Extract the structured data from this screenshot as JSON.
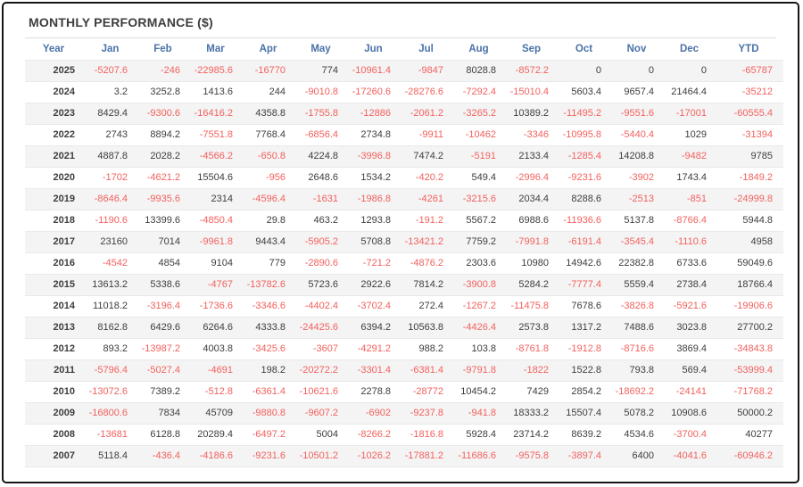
{
  "title": "MONTHLY PERFORMANCE ($)",
  "colors": {
    "text_dark": "#3d3d3d",
    "header_blue": "#4a72a8",
    "negative_red": "#f2615e",
    "stripe_gray": "#f4f4f4",
    "frame_black": "#161616"
  },
  "table": {
    "columns": [
      "Year",
      "Jan",
      "Feb",
      "Mar",
      "Apr",
      "May",
      "Jun",
      "Jul",
      "Aug",
      "Sep",
      "Oct",
      "Nov",
      "Dec",
      "YTD"
    ],
    "rows": [
      {
        "year": "2025",
        "values": [
          "-5207.6",
          "-246",
          "-22985.6",
          "-16770",
          "774",
          "-10961.4",
          "-9847",
          "8028.8",
          "-8572.2",
          "0",
          "0",
          "0",
          "-65787"
        ]
      },
      {
        "year": "2024",
        "values": [
          "3.2",
          "3252.8",
          "1413.6",
          "244",
          "-9010.8",
          "-17260.6",
          "-28276.6",
          "-7292.4",
          "-15010.4",
          "5603.4",
          "9657.4",
          "21464.4",
          "-35212"
        ]
      },
      {
        "year": "2023",
        "values": [
          "8429.4",
          "-9300.6",
          "-16416.2",
          "4358.8",
          "-1755.8",
          "-12886",
          "-2061.2",
          "-3265.2",
          "10389.2",
          "-11495.2",
          "-9551.6",
          "-17001",
          "-60555.4"
        ]
      },
      {
        "year": "2022",
        "values": [
          "2743",
          "8894.2",
          "-7551.8",
          "7768.4",
          "-6856.4",
          "2734.8",
          "-9911",
          "-10462",
          "-3346",
          "-10995.8",
          "-5440.4",
          "1029",
          "-31394"
        ]
      },
      {
        "year": "2021",
        "values": [
          "4887.8",
          "2028.2",
          "-4566.2",
          "-650.8",
          "4224.8",
          "-3996.8",
          "7474.2",
          "-5191",
          "2133.4",
          "-1285.4",
          "14208.8",
          "-9482",
          "9785"
        ]
      },
      {
        "year": "2020",
        "values": [
          "-1702",
          "-4621.2",
          "15504.6",
          "-956",
          "2648.6",
          "1534.2",
          "-420.2",
          "549.4",
          "-2996.4",
          "-9231.6",
          "-3902",
          "1743.4",
          "-1849.2"
        ]
      },
      {
        "year": "2019",
        "values": [
          "-8646.4",
          "-9935.6",
          "2314",
          "-4596.4",
          "-1631",
          "-1986.8",
          "-4261",
          "-3215.6",
          "2034.4",
          "8288.6",
          "-2513",
          "-851",
          "-24999.8"
        ]
      },
      {
        "year": "2018",
        "values": [
          "-1190.6",
          "13399.6",
          "-4850.4",
          "29.8",
          "463.2",
          "1293.8",
          "-191.2",
          "5567.2",
          "6988.6",
          "-11936.6",
          "5137.8",
          "-8766.4",
          "5944.8"
        ]
      },
      {
        "year": "2017",
        "values": [
          "23160",
          "7014",
          "-9961.8",
          "9443.4",
          "-5905.2",
          "5708.8",
          "-13421.2",
          "7759.2",
          "-7991.8",
          "-6191.4",
          "-3545.4",
          "-1110.6",
          "4958"
        ]
      },
      {
        "year": "2016",
        "values": [
          "-4542",
          "4854",
          "9104",
          "779",
          "-2890.6",
          "-721.2",
          "-4876.2",
          "2303.6",
          "10980",
          "14942.6",
          "22382.8",
          "6733.6",
          "59049.6"
        ]
      },
      {
        "year": "2015",
        "values": [
          "13613.2",
          "5338.6",
          "-4767",
          "-13782.6",
          "5723.6",
          "2922.6",
          "7814.2",
          "-3900.8",
          "5284.2",
          "-7777.4",
          "5559.4",
          "2738.4",
          "18766.4"
        ]
      },
      {
        "year": "2014",
        "values": [
          "11018.2",
          "-3196.4",
          "-1736.6",
          "-3346.6",
          "-4402.4",
          "-3702.4",
          "272.4",
          "-1267.2",
          "-11475.8",
          "7678.6",
          "-3826.8",
          "-5921.6",
          "-19906.6"
        ]
      },
      {
        "year": "2013",
        "values": [
          "8162.8",
          "6429.6",
          "6264.6",
          "4333.8",
          "-24425.6",
          "6394.2",
          "10563.8",
          "-4426.4",
          "2573.8",
          "1317.2",
          "7488.6",
          "3023.8",
          "27700.2"
        ]
      },
      {
        "year": "2012",
        "values": [
          "893.2",
          "-13987.2",
          "4003.8",
          "-3425.6",
          "-3607",
          "-4291.2",
          "988.2",
          "103.8",
          "-8761.8",
          "-1912.8",
          "-8716.6",
          "3869.4",
          "-34843.8"
        ]
      },
      {
        "year": "2011",
        "values": [
          "-5796.4",
          "-5027.4",
          "-4691",
          "198.2",
          "-20272.2",
          "-3301.4",
          "-6381.4",
          "-9791.8",
          "-1822",
          "1522.8",
          "793.8",
          "569.4",
          "-53999.4"
        ]
      },
      {
        "year": "2010",
        "values": [
          "-13072.6",
          "7389.2",
          "-512.8",
          "-6361.4",
          "-10621.6",
          "2278.8",
          "-28772",
          "10454.2",
          "7429",
          "2854.2",
          "-18692.2",
          "-24141",
          "-71768.2"
        ]
      },
      {
        "year": "2009",
        "values": [
          "-16800.6",
          "7834",
          "45709",
          "-9880.8",
          "-9607.2",
          "-6902",
          "-9237.8",
          "-941.8",
          "18333.2",
          "15507.4",
          "5078.2",
          "10908.6",
          "50000.2"
        ]
      },
      {
        "year": "2008",
        "values": [
          "-13681",
          "6128.8",
          "20289.4",
          "-6497.2",
          "5004",
          "-8266.2",
          "-1816.8",
          "5928.4",
          "23714.2",
          "8639.2",
          "4534.6",
          "-3700.4",
          "40277"
        ]
      },
      {
        "year": "2007",
        "values": [
          "5118.4",
          "-436.4",
          "-4186.6",
          "-9231.6",
          "-10501.2",
          "-1026.2",
          "-17881.2",
          "-11686.6",
          "-9575.8",
          "-3897.4",
          "6400",
          "-4041.6",
          "-60946.2"
        ]
      }
    ]
  }
}
